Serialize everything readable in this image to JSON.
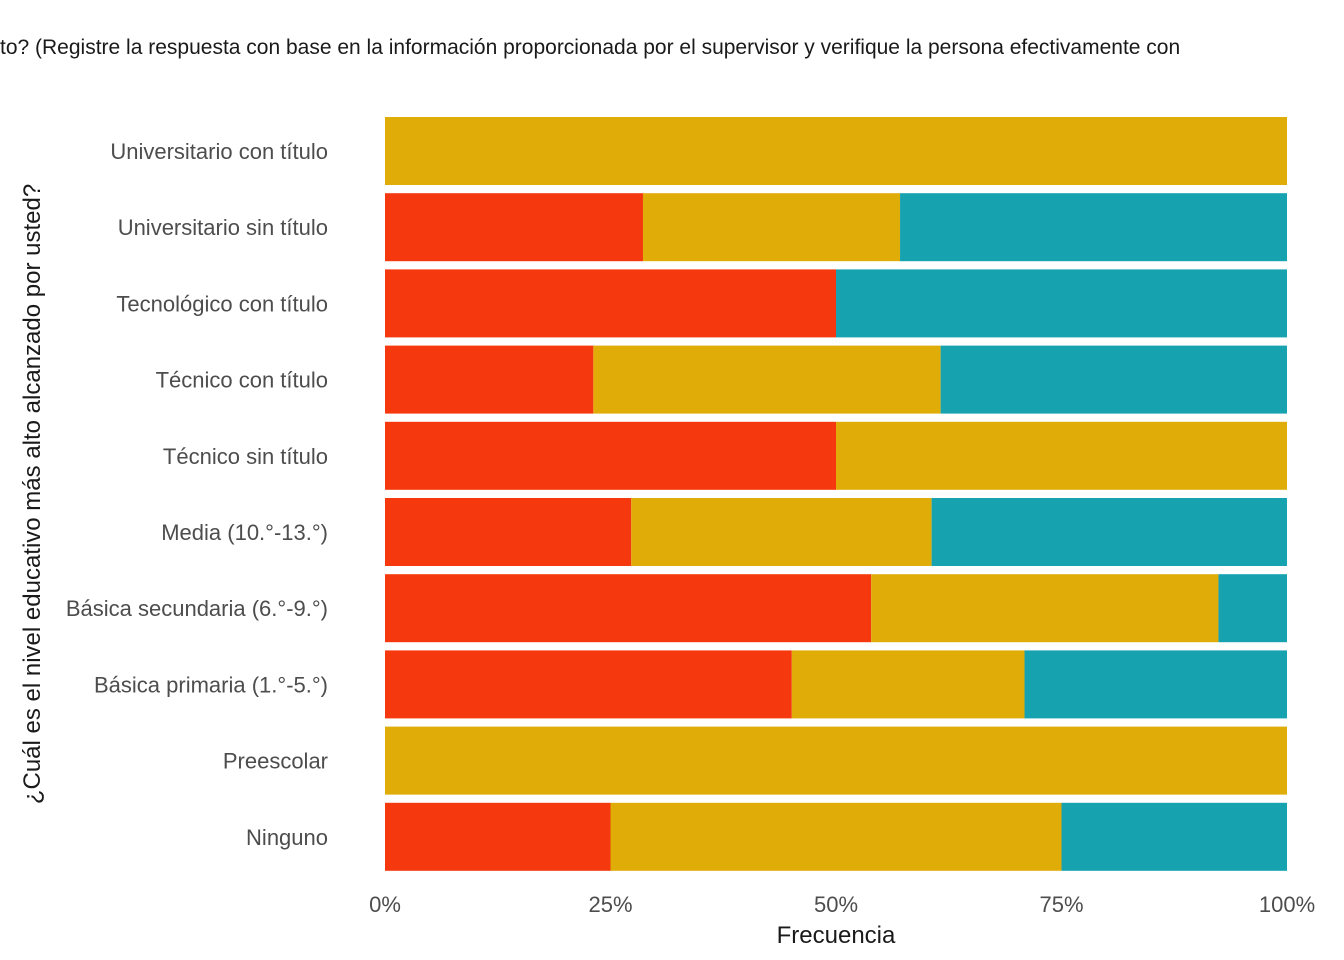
{
  "chart_data": {
    "type": "bar",
    "orientation": "horizontal",
    "stacked": "percent",
    "title": "to? (Registre la respuesta con base en la información proporcionada por el supervisor y verifique la persona efectivamente con",
    "xlabel": "Frecuencia",
    "ylabel": "¿Cuál es el nivel educativo más alto alcanzado por usted?",
    "xlim": [
      0,
      1
    ],
    "x_ticks": [
      0,
      0.25,
      0.5,
      0.75,
      1
    ],
    "x_tick_labels": [
      "0%",
      "25%",
      "50%",
      "75%",
      "100%"
    ],
    "grid": false,
    "legend": "none",
    "categories": [
      "Universitario con título",
      "Universitario sin título",
      "Tecnológico con título",
      "Técnico con título",
      "Técnico sin título",
      "Media (10.°-13.°)",
      "Básica secundaria (6.°-9.°)",
      "Básica primaria (1.°-5.°)",
      "Preescolar",
      "Ninguno"
    ],
    "series": [
      {
        "color": "#f5380d",
        "values": [
          0,
          0.286,
          0.5,
          0.231,
          0.5,
          0.273,
          0.539,
          0.451,
          0,
          0.25
        ]
      },
      {
        "color": "#e0ac08",
        "values": [
          1,
          0.285,
          0,
          0.385,
          0.5,
          0.333,
          0.385,
          0.258,
          1,
          0.5
        ]
      },
      {
        "color": "#17a2b0",
        "values": [
          0,
          0.429,
          0.5,
          0.384,
          0,
          0.394,
          0.076,
          0.291,
          0,
          0.25
        ]
      }
    ]
  }
}
